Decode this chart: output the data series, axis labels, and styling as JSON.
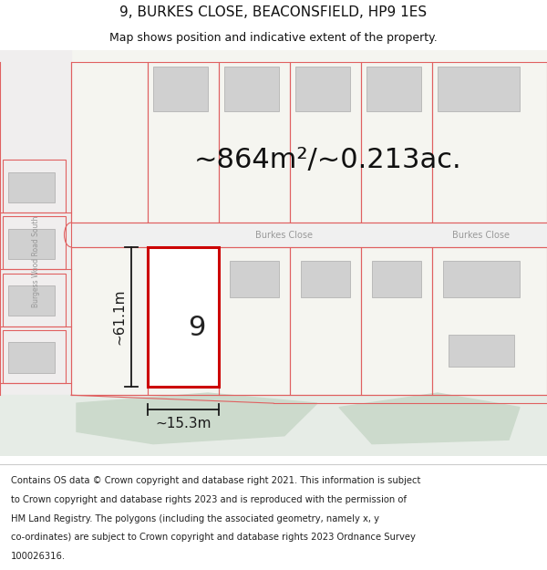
{
  "title": "9, BURKES CLOSE, BEACONSFIELD, HP9 1ES",
  "subtitle": "Map shows position and indicative extent of the property.",
  "area_text": "~864m²/~0.213ac.",
  "dim_width": "~15.3m",
  "dim_height": "~61.1m",
  "plot_number": "9",
  "road_label1": "Burkes Close",
  "road_label2": "Burkes Close",
  "road_label3": "Burgess Wood Road South",
  "footer_lines": [
    "Contains OS data © Crown copyright and database right 2021. This information is subject",
    "to Crown copyright and database rights 2023 and is reproduced with the permission of",
    "HM Land Registry. The polygons (including the associated geometry, namely x, y",
    "co-ordinates) are subject to Crown copyright and database rights 2023 Ordnance Survey",
    "100026316."
  ],
  "bg_color": "#ffffff",
  "map_bg": "#f5f5f0",
  "building_fill": "#d0d0d0",
  "building_edge": "#aaaaaa",
  "plot_edge_color": "#cc0000",
  "plot_fill": "#ffffff",
  "dim_line_color": "#1a1a1a",
  "road_line_color": "#e06060",
  "text_color": "#111111",
  "footer_color": "#222222",
  "road_label_color": "#999999",
  "green_color": "#ccdacc",
  "left_strip_color": "#f0eeee",
  "road_fill_color": "#f0f0f0",
  "title_fontsize": 11,
  "subtitle_fontsize": 9,
  "area_fontsize": 22,
  "dim_fontsize": 11,
  "plot_num_fontsize": 22,
  "footer_fontsize": 7.2
}
